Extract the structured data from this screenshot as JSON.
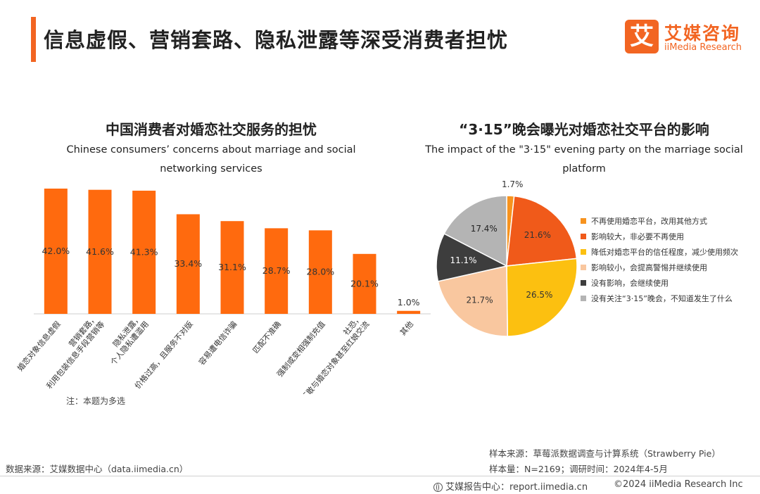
{
  "header": {
    "title": "信息虚假、营销套路、隐私泄露等深受消费者担忧",
    "logo_mark": "艾",
    "logo_cn": "艾媒咨询",
    "logo_en": "iiMedia Research"
  },
  "colors": {
    "accent": "#f26522",
    "bar": "#ff6a0e",
    "pie": [
      "#f7931e",
      "#f05a1a",
      "#fcc010",
      "#f9c79f",
      "#3d3d3d",
      "#b4b4b4"
    ]
  },
  "chart_data": [
    {
      "type": "bar",
      "title": "中国消费者对婚恋社交服务的担忧",
      "subtitle": "Chinese consumers’ concerns about marriage and social networking services",
      "categories": [
        "婚恋对象信息虚假",
        "营销套路，利用包装信息手段营销等",
        "隐私泄露，个人隐私遭滥用",
        "价格过高，且服务不对版",
        "容易遭电信诈骗",
        "匹配不准确",
        "强制或变相强制充值",
        "社恐，不敢与婚恋对象甚至红娘交流",
        "其他"
      ],
      "category_lines": [
        [
          "婚恋对象信息虚假"
        ],
        [
          "营销套路，",
          "利用包装信息手段营销等"
        ],
        [
          "隐私泄露，",
          "个人隐私遭滥用"
        ],
        [
          "价格过高，且服务不对版"
        ],
        [
          "容易遭电信诈骗"
        ],
        [
          "匹配不准确"
        ],
        [
          "强制或变相强制充值"
        ],
        [
          "社恐，",
          "不敢与婚恋对象甚至红娘交流"
        ],
        [
          "其他"
        ]
      ],
      "values": [
        42.0,
        41.6,
        41.3,
        33.4,
        31.1,
        28.7,
        28.0,
        20.1,
        1.0
      ],
      "value_labels": [
        "42.0%",
        "41.6%",
        "41.3%",
        "33.4%",
        "31.1%",
        "28.7%",
        "28.0%",
        "20.1%",
        "1.0%"
      ],
      "unit": "%",
      "ylim": [
        0,
        45
      ],
      "grid": false
    },
    {
      "type": "pie",
      "title": "“3·15”晚会曝光对婚恋社交平台的影响",
      "subtitle": "The impact of the \"3·15\" evening party on the marriage social platform",
      "labels": [
        "不再使用婚恋平台，改用其他方式",
        "影响较大，非必要不再使用",
        "降低对婚恋平台的信任程度，减少使用频次",
        "影响较小，会提高警惕并继续使用",
        "没有影响，会继续使用",
        "没有关注“3·15”晚会，不知道发生了什么"
      ],
      "values": [
        1.7,
        21.6,
        26.5,
        21.7,
        11.1,
        17.4
      ],
      "value_labels": [
        "1.7%",
        "21.6%",
        "26.5%",
        "21.7%",
        "11.1%",
        "17.4%"
      ],
      "legend_position": "right"
    }
  ],
  "note": "注：本题为多选",
  "footer": {
    "data_source": "数据来源：艾媒数据中心（data.iimedia.cn）",
    "sample_source": "样本来源：草莓派数据调查与计算系统（Strawberry Pie）",
    "sample_size": "样本量：N=2169；调研时间：2024年4-5月",
    "report_center": "艾媒报告中心：report.iimedia.cn",
    "copyright": "©2024  iiMedia Research Inc"
  }
}
